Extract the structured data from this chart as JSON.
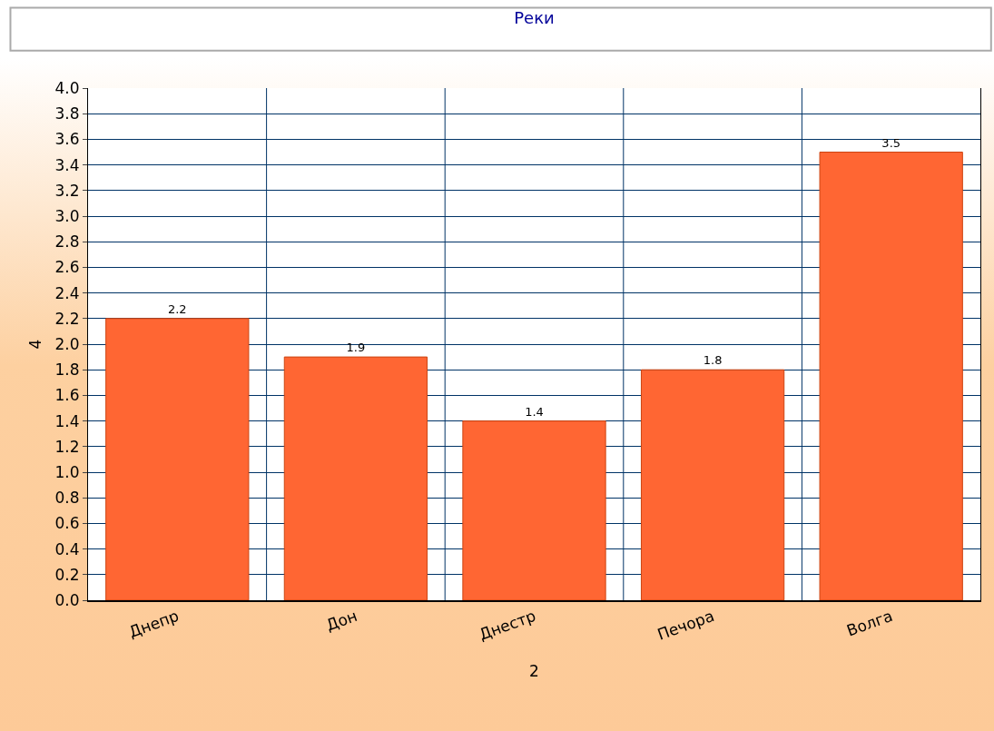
{
  "chart_data": {
    "type": "bar",
    "title": "Реки",
    "xlabel": "2",
    "ylabel": "4",
    "categories": [
      "Днепр",
      "Дон",
      "Днестр",
      "Печора",
      "Волга"
    ],
    "values": [
      2.2,
      1.9,
      1.4,
      1.8,
      3.5
    ],
    "color": "#ff6633",
    "ylim": [
      0,
      4
    ],
    "yticks": [
      {
        "value": 0,
        "label": "0.0"
      },
      0.2,
      0.4,
      0.6,
      0.8,
      {
        "value": 1,
        "label": "1.0"
      },
      1.2,
      1.4,
      1.6,
      1.8,
      {
        "value": 2,
        "label": "2.0"
      },
      2.2,
      2.4,
      2.6,
      2.8,
      {
        "value": 3,
        "label": "3.0"
      },
      3.2,
      3.4,
      3.6,
      3.8,
      {
        "value": 4,
        "label": "4.0"
      }
    ],
    "grid": true,
    "data_labels": true
  }
}
